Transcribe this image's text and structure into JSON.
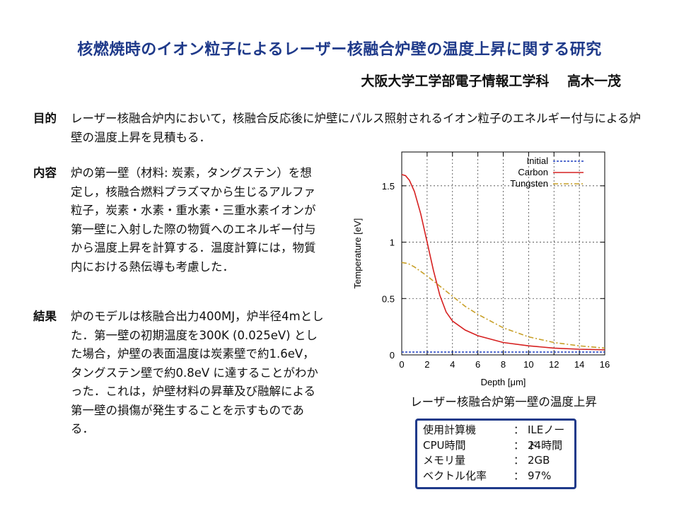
{
  "title": "核燃焼時のイオン粒子によるレーザー核融合炉壁の温度上昇に関する研究",
  "author": "大阪大学工学部電子情報工学科　 高木一茂",
  "sections": {
    "purpose": {
      "label": "目的",
      "text": "レーザー核融合炉内において，核融合反応後に炉壁にパルス照射されるイオン粒子のエネルギー付与による炉壁の温度上昇を見積もる．"
    },
    "content": {
      "label": "内容",
      "text": "炉の第一壁（材料: 炭素，タングステン）を想定し，核融合燃料プラズマから生じるアルファ粒子，炭素・水素・重水素・三重水素イオンが第一壁に入射した際の物質へのエネルギー付与から温度上昇を計算する．温度計算には，物質内における熱伝導も考慮した．"
    },
    "result": {
      "label": "結果",
      "text": "炉のモデルは核融合出力400MJ，炉半径4mとした．第一壁の初期温度を300K (0.025eV) とした場合，炉壁の表面温度は炭素壁で約1.6eV，タングステン壁で約0.8eV に達することがわかった．これは，炉壁材料の昇華及び融解による第一壁の損傷が発生することを示すものである．"
    }
  },
  "chart_data": {
    "type": "line",
    "xlabel": "Depth [μm]",
    "ylabel": "Temperature [eV]",
    "xlim": [
      0,
      16
    ],
    "ylim": [
      0,
      1.8
    ],
    "xticks": [
      "0",
      "2",
      "4",
      "6",
      "8",
      "10",
      "12",
      "14",
      "16"
    ],
    "yticks": [
      "0",
      "0.5",
      "1",
      "1.5"
    ],
    "grid": true,
    "legend_position": "top-right",
    "series": [
      {
        "name": "Initial",
        "color": "#1f3fbf",
        "dash": "dotted",
        "x": [
          0,
          16
        ],
        "y": [
          0.025,
          0.025
        ]
      },
      {
        "name": "Carbon",
        "color": "#d62020",
        "dash": "solid",
        "x": [
          0,
          0.3,
          0.6,
          1.0,
          1.5,
          2.0,
          2.5,
          3.0,
          3.5,
          4.0,
          5.0,
          6.0,
          8.0,
          10.0,
          12.0,
          14.0,
          16.0
        ],
        "y": [
          1.6,
          1.59,
          1.55,
          1.45,
          1.25,
          1.0,
          0.75,
          0.53,
          0.38,
          0.3,
          0.22,
          0.17,
          0.11,
          0.08,
          0.06,
          0.05,
          0.045
        ]
      },
      {
        "name": "Tungsten",
        "color": "#c8a028",
        "dash": "dashdot",
        "x": [
          0,
          0.5,
          1.0,
          2.0,
          3.0,
          4.0,
          5.0,
          6.0,
          8.0,
          10.0,
          12.0,
          14.0,
          16.0
        ],
        "y": [
          0.82,
          0.81,
          0.78,
          0.7,
          0.61,
          0.52,
          0.43,
          0.36,
          0.24,
          0.16,
          0.11,
          0.08,
          0.06
        ]
      }
    ]
  },
  "chart_caption": "レーザー核融合炉第一壁の温度上昇",
  "specs": [
    {
      "key": "使用計算機",
      "colon": "：",
      "value": "ILEノード"
    },
    {
      "key": "CPU時間",
      "colon": "：",
      "value": "24時間"
    },
    {
      "key": "メモリ量",
      "colon": "：",
      "value": "2GB"
    },
    {
      "key": "ベクトル化率",
      "colon": "：",
      "value": "97%"
    }
  ]
}
